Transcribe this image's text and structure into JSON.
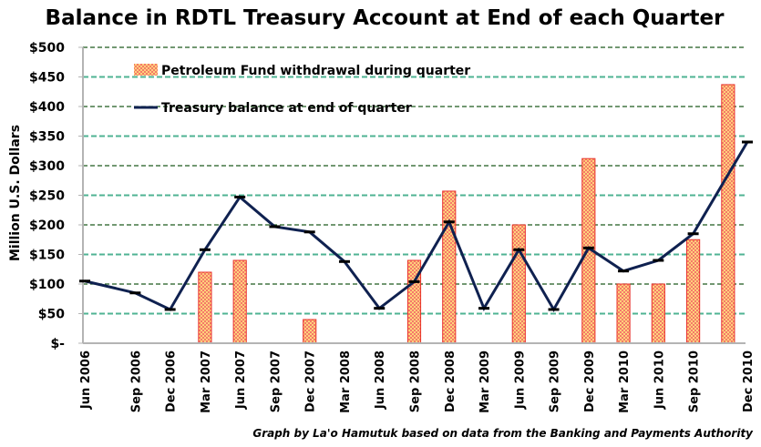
{
  "chart_data": {
    "type": "bar+line",
    "title": "Balance in RDTL Treasury Account at End of each Quarter",
    "ylabel": "Million U.S. Dollars",
    "xlabel": "",
    "ylim": [
      0,
      500
    ],
    "ytick_step": 50,
    "yticks": [
      "$-",
      "$50",
      "$100",
      "$150",
      "$200",
      "$250",
      "$300",
      "$350",
      "$400",
      "$450",
      "$500"
    ],
    "grid": true,
    "legend_position": "top-left",
    "categories": [
      "Jun 2006",
      "Sep 2006",
      "Dec 2006",
      "Mar 2007",
      "Jun 2007",
      "Sep 2007",
      "Dec 2007",
      "Mar 2008",
      "Jun 2008",
      "Sep 2008",
      "Dec 2008",
      "Mar 2009",
      "Jun 2009",
      "Sep 2009",
      "Dec 2009",
      "Mar 2010",
      "Jun 2010",
      "Sep 2010",
      "Dec 2010"
    ],
    "series": [
      {
        "name": "Petroleum Fund withdrawal during quarter",
        "type": "bar",
        "color": "#f4a460",
        "border_color": "#e8322a",
        "values": [
          0,
          0,
          0,
          120,
          140,
          0,
          40,
          0,
          0,
          140,
          257,
          0,
          200,
          0,
          312,
          100,
          100,
          175,
          437
        ]
      },
      {
        "name": "Treasury balance at end of quarter",
        "type": "line",
        "color": "#0f2150",
        "values": [
          105,
          85,
          57,
          158,
          247,
          197,
          188,
          138,
          59,
          104,
          205,
          59,
          158,
          57,
          161,
          122,
          140,
          185,
          340
        ]
      }
    ],
    "credit": "Graph by La'o Hamutuk based on data from the Banking and Payments Authority"
  },
  "colors": {
    "grid_dark": "#1e5a1e",
    "grid_teal": "#4fb393",
    "axis": "#b4b4b4",
    "line": "#0f2150",
    "marker": "#000000",
    "bar_fill_a": "#ffd27a",
    "bar_fill_b": "#f47a6a",
    "bar_border": "#e8322a"
  }
}
